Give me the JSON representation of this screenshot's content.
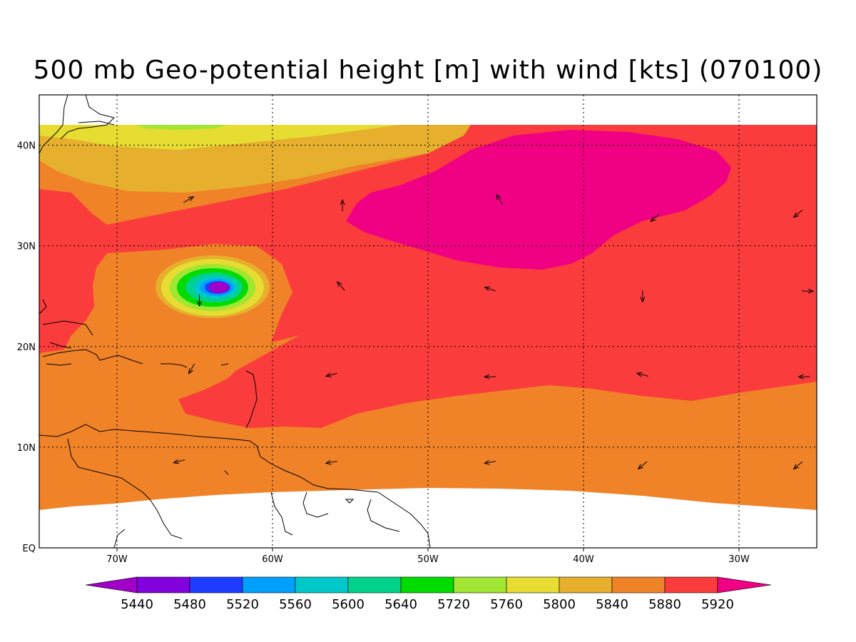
{
  "title": "500 mb Geo-potential height [m] with wind [kts] (070100)",
  "map": {
    "region": "Tropical North Atlantic / Caribbean",
    "lon_range": [
      -75,
      -25
    ],
    "lat_range": [
      0,
      45
    ],
    "lon_ticks": [
      {
        "value": -70,
        "label": "70W"
      },
      {
        "value": -60,
        "label": "60W"
      },
      {
        "value": -50,
        "label": "50W"
      },
      {
        "value": -40,
        "label": "40W"
      },
      {
        "value": -30,
        "label": "30W"
      }
    ],
    "lat_ticks": [
      {
        "value": 0,
        "label": "EQ"
      },
      {
        "value": 10,
        "label": "10N"
      },
      {
        "value": 20,
        "label": "20N"
      },
      {
        "value": 30,
        "label": "30N"
      },
      {
        "value": 40,
        "label": "40N"
      }
    ],
    "grid": true,
    "features": {
      "ridge_center_5920plus": {
        "lon": -42,
        "lat": 34
      },
      "low_center": {
        "lon": -63.5,
        "lat": 26
      }
    }
  },
  "colorbar": {
    "levels": [
      {
        "value": "5440",
        "color": "#a000c8"
      },
      {
        "value": "5480",
        "color": "#8200dc"
      },
      {
        "value": "5520",
        "color": "#1e3cff"
      },
      {
        "value": "5560",
        "color": "#00a0ff"
      },
      {
        "value": "5600",
        "color": "#00c8c8"
      },
      {
        "value": "5640",
        "color": "#00d28c"
      },
      {
        "value": "5720",
        "color": "#00dc00"
      },
      {
        "value": "5760",
        "color": "#a0e632"
      },
      {
        "value": "5800",
        "color": "#e6dc32"
      },
      {
        "value": "5840",
        "color": "#e6af2d"
      },
      {
        "value": "5880",
        "color": "#f08228"
      },
      {
        "value": "5920",
        "color": "#fa3c3c"
      }
    ],
    "low_end_color": "#a000c8",
    "high_end_color": "#f00082"
  },
  "colors": {
    "ridge": "#f00082",
    "red": "#fa3c3c",
    "orange": "#f08228",
    "gold": "#e6af2d",
    "yellow": "#e6dc32",
    "lime": "#a0e632",
    "green": "#00dc00"
  },
  "wind_vectors": [
    {
      "lon": -65.4,
      "lat": 34.6,
      "dir_deg": 60
    },
    {
      "lon": -55.5,
      "lat": 34.0,
      "dir_deg": 0
    },
    {
      "lon": -45.4,
      "lat": 34.6,
      "dir_deg": -30
    },
    {
      "lon": -35.4,
      "lat": 32.8,
      "dir_deg": -130
    },
    {
      "lon": -26.2,
      "lat": 33.2,
      "dir_deg": -130
    },
    {
      "lon": -64.7,
      "lat": 24.6,
      "dir_deg": 180
    },
    {
      "lon": -55.6,
      "lat": 26.0,
      "dir_deg": -40
    },
    {
      "lon": -46.0,
      "lat": 25.7,
      "dir_deg": -70
    },
    {
      "lon": -36.2,
      "lat": 25.0,
      "dir_deg": 180
    },
    {
      "lon": -25.6,
      "lat": 25.5,
      "dir_deg": 90
    },
    {
      "lon": -65.2,
      "lat": 17.8,
      "dir_deg": -150
    },
    {
      "lon": -56.2,
      "lat": 17.2,
      "dir_deg": -105
    },
    {
      "lon": -46.0,
      "lat": 17.0,
      "dir_deg": -90
    },
    {
      "lon": -36.2,
      "lat": 17.2,
      "dir_deg": -75
    },
    {
      "lon": -25.8,
      "lat": 17.0,
      "dir_deg": -90
    },
    {
      "lon": -66.0,
      "lat": 8.6,
      "dir_deg": -105
    },
    {
      "lon": -56.2,
      "lat": 8.5,
      "dir_deg": -100
    },
    {
      "lon": -46.0,
      "lat": 8.5,
      "dir_deg": -100
    },
    {
      "lon": -36.2,
      "lat": 8.2,
      "dir_deg": -130
    },
    {
      "lon": -26.2,
      "lat": 8.2,
      "dir_deg": -130
    }
  ]
}
